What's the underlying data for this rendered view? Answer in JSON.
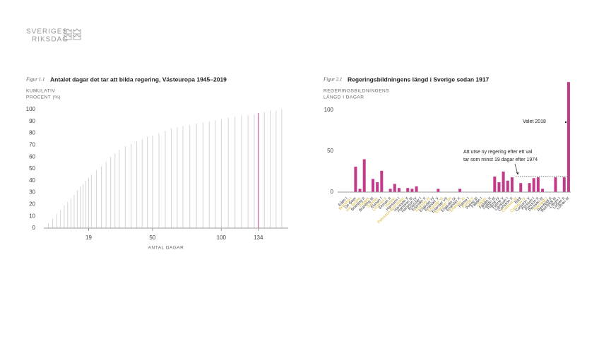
{
  "header": {
    "line1": "SVERIGES",
    "line2": "RIKSDAG"
  },
  "chart_data": [
    {
      "type": "cumulative_bars",
      "title_prefix": "Figur 1.1",
      "title": "Antalet dagar det tar att bilda regering, Västeuropa 1945–2019",
      "ylabel": [
        "KUMULATIV",
        "PROCENT (%)"
      ],
      "xlabel": "ANTAL DAGAR",
      "x": [
        7,
        8,
        9,
        10,
        11,
        12,
        13,
        14,
        15,
        16,
        17,
        18,
        19,
        20,
        22,
        24,
        26,
        28,
        30,
        32,
        35,
        38,
        41,
        44,
        47,
        50,
        54,
        58,
        62,
        66,
        70,
        75,
        80,
        85,
        90,
        95,
        100,
        106,
        112,
        118,
        124,
        130,
        134,
        140,
        146,
        152,
        158
      ],
      "values": [
        4,
        8,
        12,
        15,
        19,
        22,
        25,
        28,
        32,
        35,
        37,
        40,
        42,
        45,
        49,
        52,
        56,
        60,
        63,
        66,
        69,
        71,
        73,
        75,
        77,
        78,
        80,
        82,
        84,
        85,
        86,
        87,
        88,
        89,
        90,
        91,
        92,
        93,
        94,
        95,
        95,
        96,
        97,
        98,
        99,
        99,
        100
      ],
      "color": "#d4d4d4",
      "highlight_x": 134,
      "highlight_color": "#c23b8a",
      "xscale": "sqrt",
      "xlim": [
        6,
        165
      ],
      "xticks": [
        19,
        50,
        100,
        134
      ],
      "ylim": [
        0,
        100
      ],
      "yticks": [
        0,
        10,
        20,
        30,
        40,
        50,
        60,
        70,
        80,
        90,
        100
      ]
    },
    {
      "type": "bar",
      "title_prefix": "Figur 2.1",
      "title": "Regeringsbildningens längd i Sverige sedan 1917",
      "ylabel": [
        "REGERINGSBILDNINGENS",
        "LÄNGD I DAGAR"
      ],
      "categories": [
        "Edén I",
        "Branting I",
        "De Geer",
        "von Sydow",
        "Branting II",
        "Trygger",
        "Branting III",
        "Sandler",
        "Ekman I",
        "Lindman II",
        "Ekman II",
        "Hamrin",
        "Hansson I",
        "Pehrsson-Bramstorp",
        "Hansson II",
        "Hansson III",
        "Hansson IV",
        "Erlander I",
        "Erlander II",
        "Erlander III",
        "Erlander IV",
        "Erlander V",
        "Erlander VI",
        "Erlander VII",
        "Erlander VIII",
        "Erlander IX",
        "Erlander X",
        "Erlander XI",
        "Palme I",
        "Palme II",
        "Palme III",
        "Fälldin I",
        "Ullsten",
        "Fälldin II",
        "Fälldin III",
        "Palme IV",
        "Palme V",
        "Carlsson I",
        "Carlsson II",
        "Carlsson III",
        "Bildt",
        "Carlsson IV",
        "Carlsson V",
        "Persson I",
        "Persson II",
        "Persson III",
        "Reinfeldt I",
        "Reinfeldt II",
        "Reinfeldt III",
        "Löfven I",
        "Löfven II",
        "Löfven III"
      ],
      "values": [
        0,
        0,
        31,
        4,
        40,
        0,
        16,
        12,
        26,
        0,
        4,
        10,
        5,
        0,
        5,
        4,
        7,
        0,
        0,
        0,
        0,
        4,
        0,
        0,
        0,
        0,
        4,
        0,
        0,
        0,
        0,
        0,
        0,
        0,
        19,
        12,
        25,
        14,
        18,
        0,
        11,
        0,
        11,
        17,
        18,
        4,
        0,
        0,
        18,
        0,
        18,
        134
      ],
      "label_colors": [
        "#333",
        "#d9b530",
        "#333",
        "#d9b530",
        "#333",
        "#d9b530",
        "#333",
        "#d9b530",
        "#333",
        "#d9b530",
        "#333",
        "#d9b530",
        "#333",
        "#d9b530",
        "#333",
        "#333",
        "#333",
        "#333",
        "#333",
        "#d9b530",
        "#333",
        "#333",
        "#d9b530",
        "#333",
        "#d9b530",
        "#333",
        "#333",
        "#d9b530",
        "#333",
        "#d9b530",
        "#333",
        "#333",
        "#d9b530",
        "#333",
        "#333",
        "#333",
        "#333",
        "#333",
        "#333",
        "#d9b530",
        "#333",
        "#d9b530",
        "#333",
        "#333",
        "#333",
        "#333",
        "#d9b530",
        "#333",
        "#333",
        "#333",
        "#333",
        "#333"
      ],
      "color": "#c23b8a",
      "ylim": [
        0,
        135
      ],
      "yticks": [
        0,
        50,
        100
      ],
      "reference_line": 19,
      "annotations": [
        "Valet 2018",
        "Att utse ny regering efter ett val",
        "tar som minst 19 dagar efter 1974"
      ]
    }
  ]
}
